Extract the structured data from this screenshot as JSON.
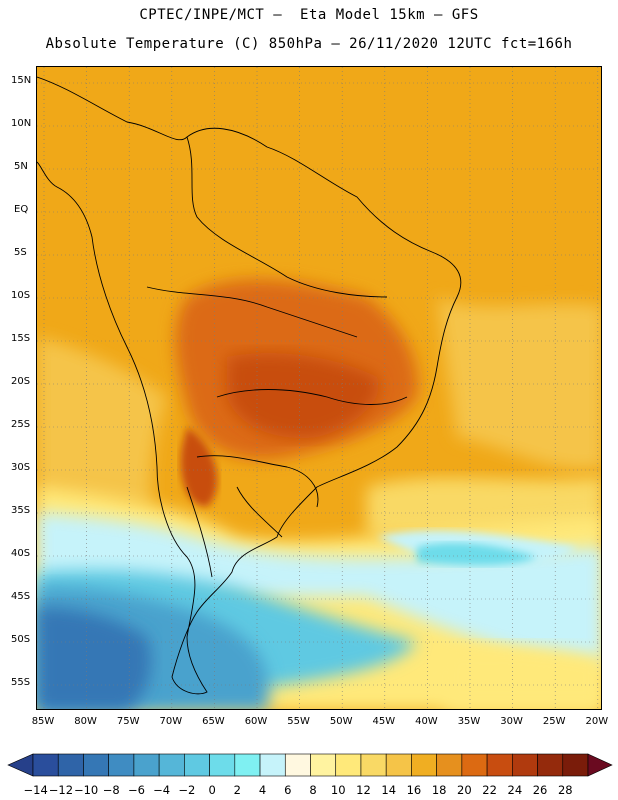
{
  "title_line1": "CPTEC/INPE/MCT –  Eta Model 15km – GFS",
  "title_line2": "Absolute Temperature (C) 850hPa – 26/11/2020 12UTC fct=166h",
  "lat_labels": [
    "15N",
    "10N",
    "5N",
    "EQ",
    "5S",
    "10S",
    "15S",
    "20S",
    "25S",
    "30S",
    "35S",
    "40S",
    "45S",
    "50S",
    "55S"
  ],
  "lon_labels": [
    "85W",
    "80W",
    "75W",
    "70W",
    "65W",
    "60W",
    "55W",
    "50W",
    "45W",
    "40W",
    "35W",
    "30W",
    "25W",
    "20W"
  ],
  "colorbar": {
    "tick_labels": [
      "-14",
      "-12",
      "-10",
      "-8",
      "-6",
      "-4",
      "-2",
      "0",
      "2",
      "4",
      "6",
      "8",
      "10",
      "12",
      "14",
      "16",
      "18",
      "20",
      "22",
      "24",
      "26",
      "28"
    ],
    "colors": [
      "#2a4e9c",
      "#2f64a8",
      "#3577b5",
      "#3f8cc2",
      "#4aa2cd",
      "#55b6d8",
      "#5fc9e2",
      "#6ddcea",
      "#7ff0f2",
      "#c6f3fa",
      "#fff8e0",
      "#fff3a0",
      "#ffe97a",
      "#f9d965",
      "#f5c448",
      "#f0ae22",
      "#e6901e",
      "#dc6a12",
      "#c84d10",
      "#b03a0e",
      "#942a0c",
      "#7a1c0a"
    ],
    "min_arrow_color": "#26408a",
    "max_arrow_color": "#6a0a20"
  }
}
